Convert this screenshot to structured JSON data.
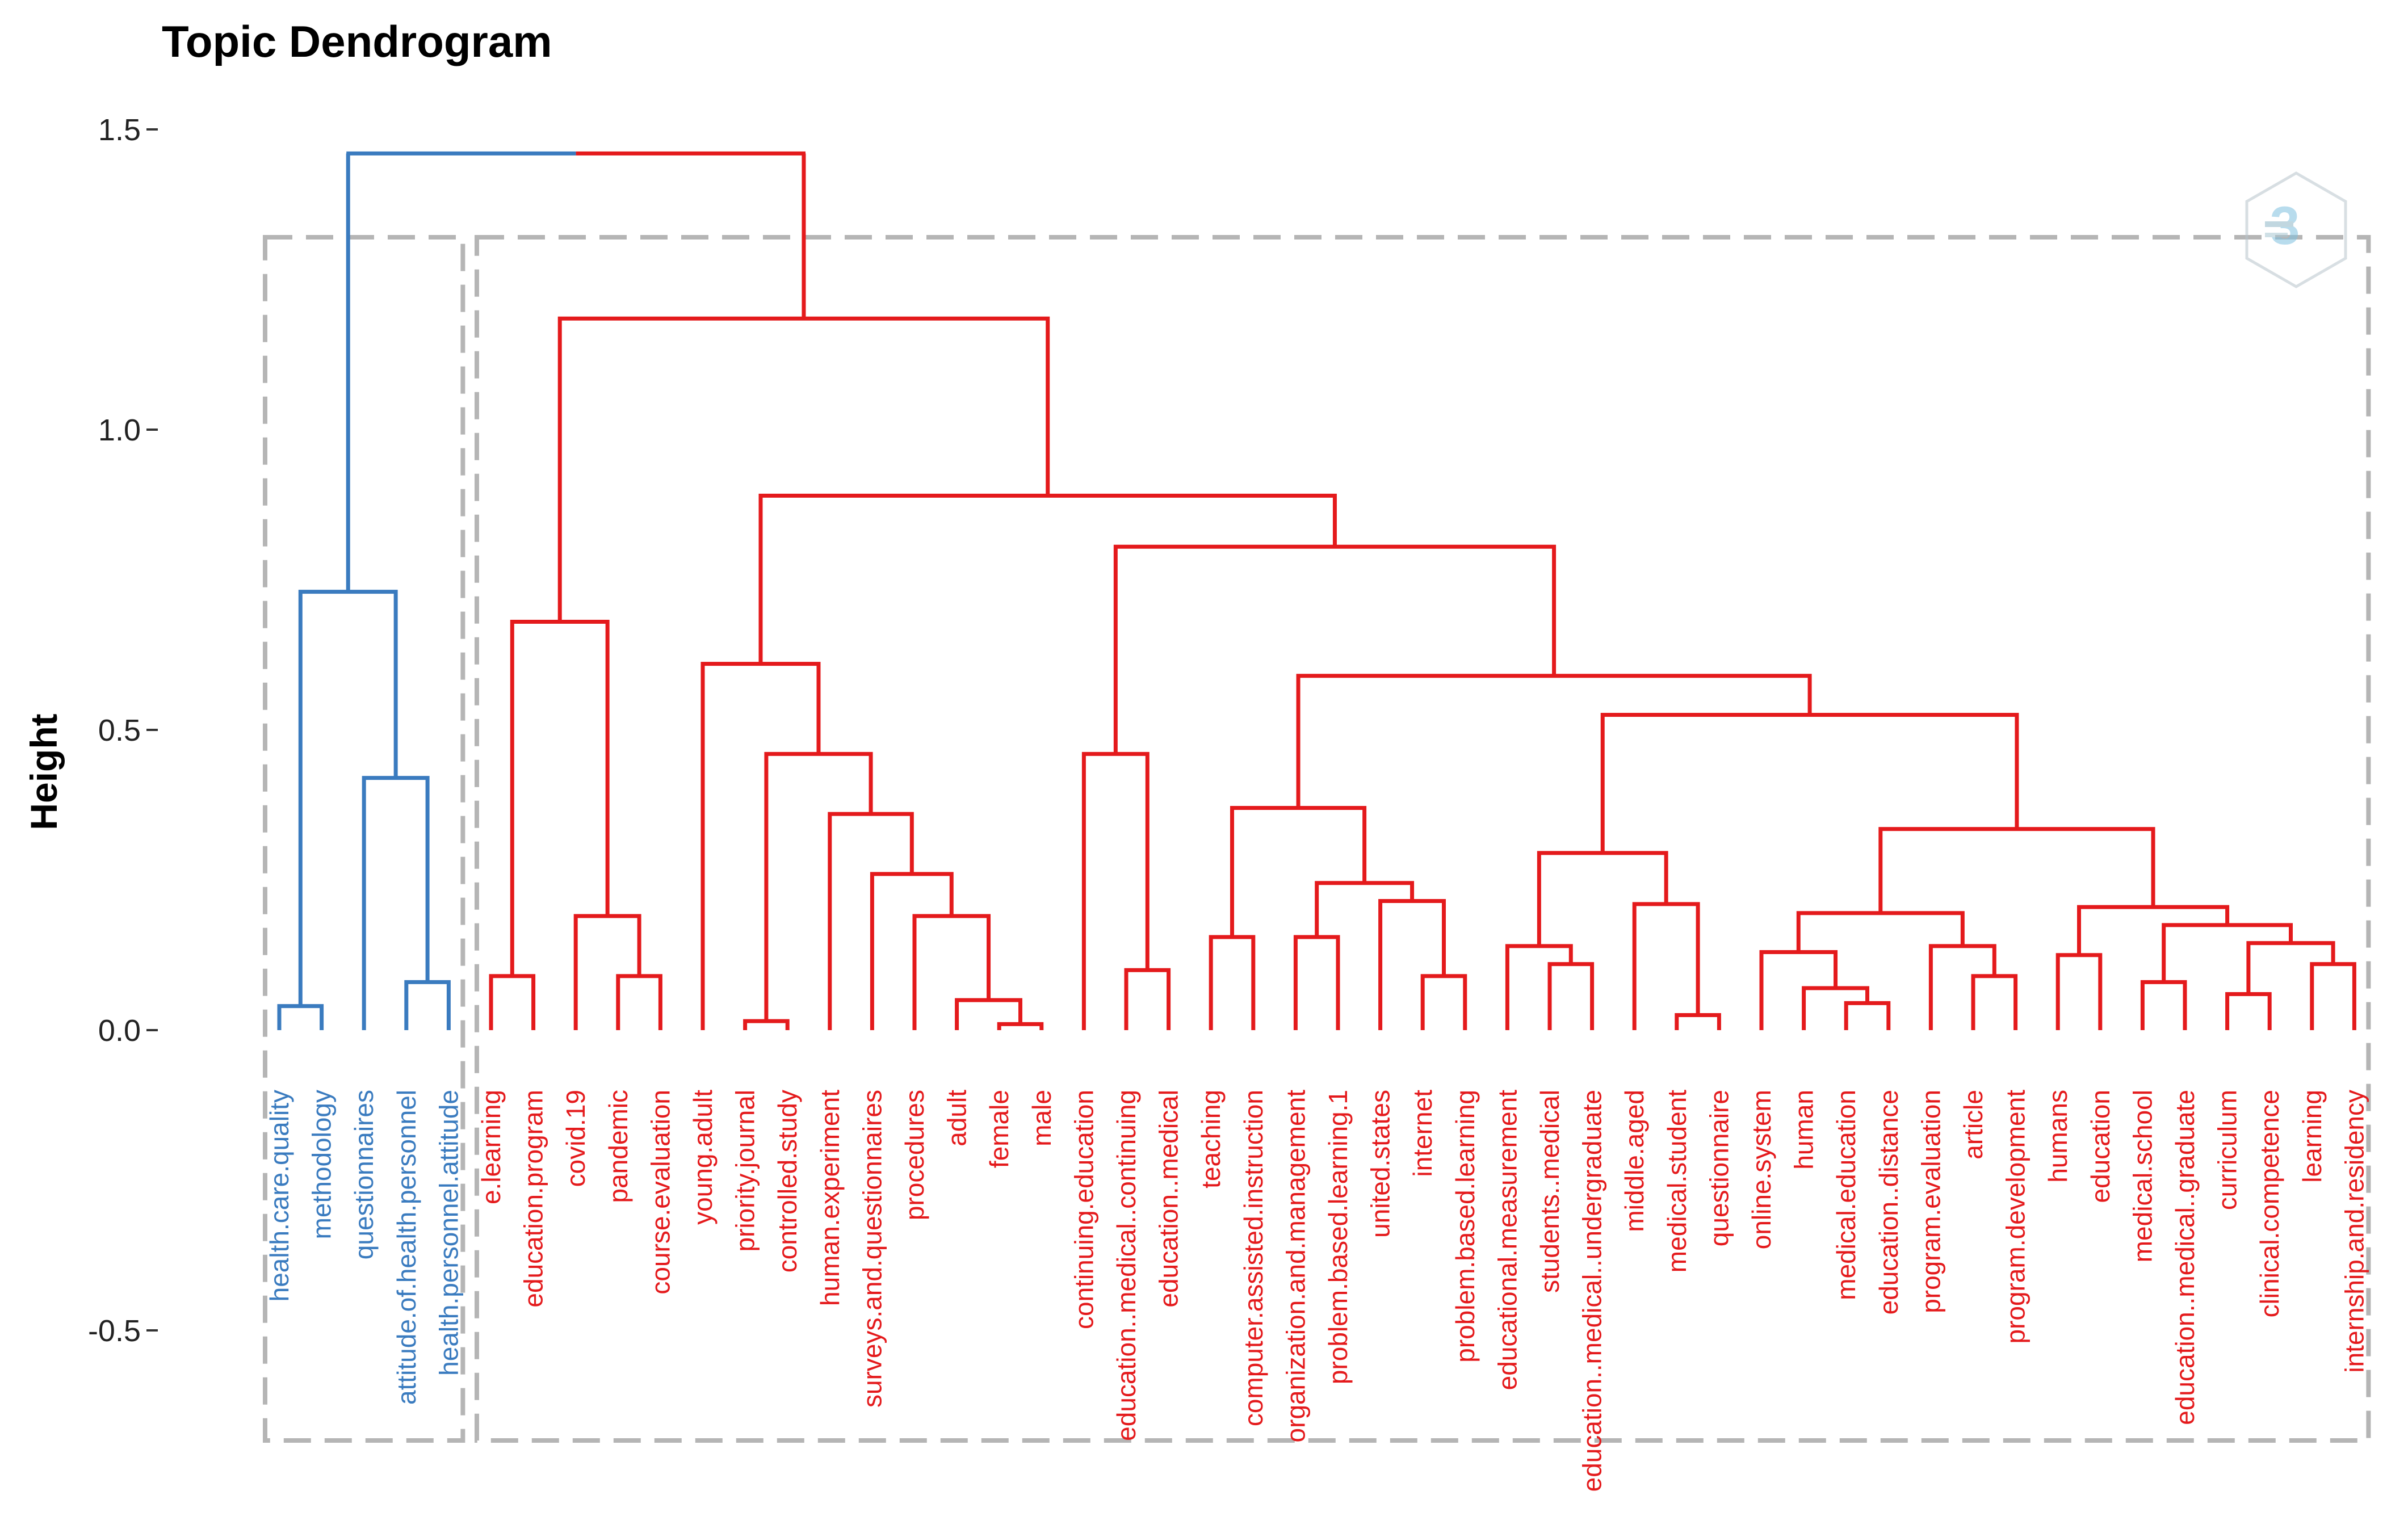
{
  "chart_data": {
    "type": "dendrogram",
    "title": "Topic Dendrogram",
    "ylabel": "Height",
    "xlabel": "",
    "ylim": [
      -0.7,
      1.55
    ],
    "yticks": [
      {
        "value": 1.5,
        "label": "1.5"
      },
      {
        "value": 1.0,
        "label": "1.0"
      },
      {
        "value": 0.5,
        "label": "0.5"
      },
      {
        "value": 0.0,
        "label": "0.0"
      },
      {
        "value": -0.5,
        "label": "-0.5"
      }
    ],
    "colors": {
      "cluster1": "#3a7bbf",
      "cluster2": "#e41a1c",
      "box": "#b5b5b5"
    },
    "leaves": [
      {
        "label": "health.care.quality",
        "cluster": 1
      },
      {
        "label": "methodology",
        "cluster": 1
      },
      {
        "label": "questionnaires",
        "cluster": 1
      },
      {
        "label": "attitude.of.health.personnel",
        "cluster": 1
      },
      {
        "label": "health.personnel.attitude",
        "cluster": 1
      },
      {
        "label": "e.learning",
        "cluster": 2
      },
      {
        "label": "education.program",
        "cluster": 2
      },
      {
        "label": "covid.19",
        "cluster": 2
      },
      {
        "label": "pandemic",
        "cluster": 2
      },
      {
        "label": "course.evaluation",
        "cluster": 2
      },
      {
        "label": "young.adult",
        "cluster": 2
      },
      {
        "label": "priority.journal",
        "cluster": 2
      },
      {
        "label": "controlled.study",
        "cluster": 2
      },
      {
        "label": "human.experiment",
        "cluster": 2
      },
      {
        "label": "surveys.and.questionnaires",
        "cluster": 2
      },
      {
        "label": "procedures",
        "cluster": 2
      },
      {
        "label": "adult",
        "cluster": 2
      },
      {
        "label": "female",
        "cluster": 2
      },
      {
        "label": "male",
        "cluster": 2
      },
      {
        "label": "continuing.education",
        "cluster": 2
      },
      {
        "label": "education..medical..continuing",
        "cluster": 2
      },
      {
        "label": "education..medical",
        "cluster": 2
      },
      {
        "label": "teaching",
        "cluster": 2
      },
      {
        "label": "computer.assisted.instruction",
        "cluster": 2
      },
      {
        "label": "organization.and.management",
        "cluster": 2
      },
      {
        "label": "problem.based.learning.1",
        "cluster": 2
      },
      {
        "label": "united.states",
        "cluster": 2
      },
      {
        "label": "internet",
        "cluster": 2
      },
      {
        "label": "problem.based.learning",
        "cluster": 2
      },
      {
        "label": "educational.measurement",
        "cluster": 2
      },
      {
        "label": "students..medical",
        "cluster": 2
      },
      {
        "label": "education..medical..undergraduate",
        "cluster": 2
      },
      {
        "label": "middle.aged",
        "cluster": 2
      },
      {
        "label": "medical.student",
        "cluster": 2
      },
      {
        "label": "questionnaire",
        "cluster": 2
      },
      {
        "label": "online.system",
        "cluster": 2
      },
      {
        "label": "human",
        "cluster": 2
      },
      {
        "label": "medical.education",
        "cluster": 2
      },
      {
        "label": "education..distance",
        "cluster": 2
      },
      {
        "label": "program.evaluation",
        "cluster": 2
      },
      {
        "label": "article",
        "cluster": 2
      },
      {
        "label": "program.development",
        "cluster": 2
      },
      {
        "label": "humans",
        "cluster": 2
      },
      {
        "label": "education",
        "cluster": 2
      },
      {
        "label": "medical.school",
        "cluster": 2
      },
      {
        "label": "education..medical..graduate",
        "cluster": 2
      },
      {
        "label": "curriculum",
        "cluster": 2
      },
      {
        "label": "clinical.competence",
        "cluster": 2
      },
      {
        "label": "learning",
        "cluster": 2
      },
      {
        "label": "internship.and.residency",
        "cluster": 2
      }
    ],
    "merges": [
      {
        "a": "L0",
        "b": "L1",
        "height": 0.04,
        "cluster": 1
      },
      {
        "a": "L3",
        "b": "L4",
        "height": 0.08,
        "cluster": 1
      },
      {
        "a": "L2",
        "b": "M1",
        "height": 0.42,
        "cluster": 1
      },
      {
        "a": "M0",
        "b": "M2",
        "height": 0.73,
        "cluster": 1
      },
      {
        "a": "L5",
        "b": "L6",
        "height": 0.09,
        "cluster": 2
      },
      {
        "a": "L8",
        "b": "L9",
        "height": 0.09,
        "cluster": 2
      },
      {
        "a": "L7",
        "b": "M5",
        "height": 0.19,
        "cluster": 2
      },
      {
        "a": "M4",
        "b": "M6",
        "height": 0.68,
        "cluster": 2
      },
      {
        "a": "L17",
        "b": "L18",
        "height": 0.01,
        "cluster": 2
      },
      {
        "a": "L16",
        "b": "M8",
        "height": 0.05,
        "cluster": 2
      },
      {
        "a": "L15",
        "b": "M9",
        "height": 0.19,
        "cluster": 2
      },
      {
        "a": "L14",
        "b": "M10",
        "height": 0.26,
        "cluster": 2
      },
      {
        "a": "L13",
        "b": "M11",
        "height": 0.36,
        "cluster": 2
      },
      {
        "a": "L11",
        "b": "L12",
        "height": 0.015,
        "cluster": 2
      },
      {
        "a": "M13",
        "b": "M12",
        "height": 0.46,
        "cluster": 2
      },
      {
        "a": "L10",
        "b": "M14",
        "height": 0.61,
        "cluster": 2
      },
      {
        "a": "L20",
        "b": "L21",
        "height": 0.1,
        "cluster": 2
      },
      {
        "a": "L19",
        "b": "M16",
        "height": 0.46,
        "cluster": 2
      },
      {
        "a": "L22",
        "b": "L23",
        "height": 0.155,
        "cluster": 2
      },
      {
        "a": "L24",
        "b": "L25",
        "height": 0.155,
        "cluster": 2
      },
      {
        "a": "L27",
        "b": "L28",
        "height": 0.09,
        "cluster": 2
      },
      {
        "a": "L26",
        "b": "M20",
        "height": 0.215,
        "cluster": 2
      },
      {
        "a": "M19",
        "b": "M21",
        "height": 0.245,
        "cluster": 2
      },
      {
        "a": "M18",
        "b": "M22",
        "height": 0.37,
        "cluster": 2
      },
      {
        "a": "L30",
        "b": "L31",
        "height": 0.11,
        "cluster": 2
      },
      {
        "a": "L29",
        "b": "M24",
        "height": 0.14,
        "cluster": 2
      },
      {
        "a": "L33",
        "b": "L34",
        "height": 0.025,
        "cluster": 2
      },
      {
        "a": "L32",
        "b": "M26",
        "height": 0.21,
        "cluster": 2
      },
      {
        "a": "M25",
        "b": "M27",
        "height": 0.295,
        "cluster": 2
      },
      {
        "a": "L37",
        "b": "L38",
        "height": 0.045,
        "cluster": 2
      },
      {
        "a": "L36",
        "b": "M29",
        "height": 0.07,
        "cluster": 2
      },
      {
        "a": "L35",
        "b": "M30",
        "height": 0.13,
        "cluster": 2
      },
      {
        "a": "L40",
        "b": "L41",
        "height": 0.09,
        "cluster": 2
      },
      {
        "a": "L39",
        "b": "M32",
        "height": 0.14,
        "cluster": 2
      },
      {
        "a": "M31",
        "b": "M33",
        "height": 0.195,
        "cluster": 2
      },
      {
        "a": "L42",
        "b": "L43",
        "height": 0.125,
        "cluster": 2
      },
      {
        "a": "L44",
        "b": "L45",
        "height": 0.08,
        "cluster": 2
      },
      {
        "a": "L46",
        "b": "L47",
        "height": 0.06,
        "cluster": 2
      },
      {
        "a": "L48",
        "b": "L49",
        "height": 0.11,
        "cluster": 2
      },
      {
        "a": "M37",
        "b": "M38",
        "height": 0.145,
        "cluster": 2
      },
      {
        "a": "M36",
        "b": "M39",
        "height": 0.175,
        "cluster": 2
      },
      {
        "a": "M35",
        "b": "M40",
        "height": 0.205,
        "cluster": 2
      },
      {
        "a": "M34",
        "b": "M41",
        "height": 0.335,
        "cluster": 2
      },
      {
        "a": "M28",
        "b": "M42",
        "height": 0.525,
        "cluster": 2
      },
      {
        "a": "M23",
        "b": "M43",
        "height": 0.59,
        "cluster": 2
      },
      {
        "a": "M17",
        "b": "M44",
        "height": 0.805,
        "cluster": 2
      },
      {
        "a": "M15",
        "b": "M45",
        "height": 0.89,
        "cluster": 2
      },
      {
        "a": "M7",
        "b": "M46",
        "height": 1.185,
        "cluster": 2
      },
      {
        "a": "M3",
        "b": "M47",
        "height": 1.46,
        "cluster": 0
      }
    ]
  },
  "watermark": {
    "icon": "hexagon-logo-icon"
  }
}
